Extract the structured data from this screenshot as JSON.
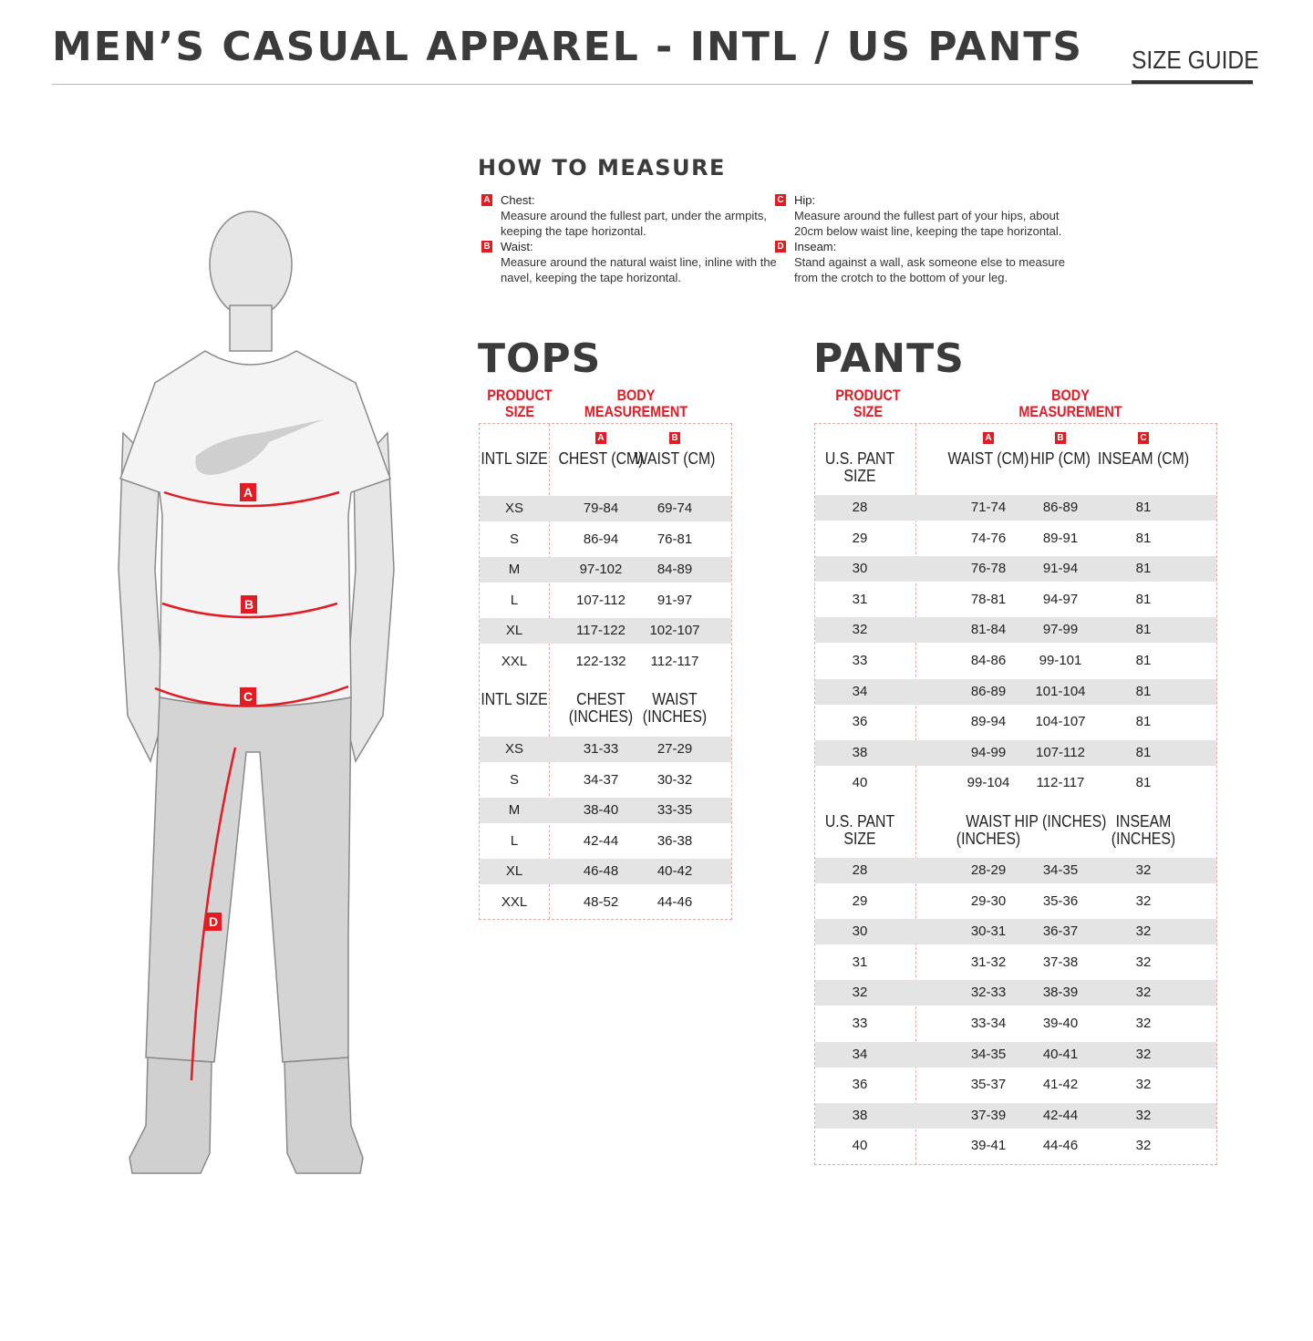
{
  "header": {
    "title": "MEN’S CASUAL APPAREL - INTL / US PANTS",
    "size_guide": "SIZE GUIDE"
  },
  "measure": {
    "title": "HOW TO MEASURE",
    "items": [
      {
        "letter": "A",
        "label": "Chest:",
        "text": "Measure around the fullest part, under the armpits, keeping the tape horizontal."
      },
      {
        "letter": "B",
        "label": "Waist:",
        "text": "Measure around the natural waist line, inline with the navel, keeping the tape horizontal."
      },
      {
        "letter": "C",
        "label": "Hip:",
        "text": "Measure around the fullest part of your hips, about 20cm below waist line, keeping the tape horizontal."
      },
      {
        "letter": "D",
        "label": "Inseam:",
        "text": "Stand against a wall, ask someone else to measure from the crotch to the bottom of your leg."
      }
    ]
  },
  "figure": {
    "markers": [
      "A",
      "B",
      "C",
      "D"
    ],
    "accent": "#e31b23"
  },
  "tops": {
    "title": "TOPS",
    "product_size": "PRODUCT SIZE",
    "body_measurement": "BODY MEASUREMENT",
    "letters": [
      "A",
      "B"
    ],
    "cm_headers": [
      "INTL SIZE",
      "CHEST (CM)",
      "WAIST (CM)"
    ],
    "cm_rows": [
      [
        "XS",
        "79-84",
        "69-74"
      ],
      [
        "S",
        "86-94",
        "76-81"
      ],
      [
        "M",
        "97-102",
        "84-89"
      ],
      [
        "L",
        "107-112",
        "91-97"
      ],
      [
        "XL",
        "117-122",
        "102-107"
      ],
      [
        "XXL",
        "122-132",
        "112-117"
      ]
    ],
    "in_headers": [
      "INTL SIZE",
      "CHEST (INCHES)",
      "WAIST (INCHES)"
    ],
    "in_rows": [
      [
        "XS",
        "31-33",
        "27-29"
      ],
      [
        "S",
        "34-37",
        "30-32"
      ],
      [
        "M",
        "38-40",
        "33-35"
      ],
      [
        "L",
        "42-44",
        "36-38"
      ],
      [
        "XL",
        "46-48",
        "40-42"
      ],
      [
        "XXL",
        "48-52",
        "44-46"
      ]
    ]
  },
  "pants": {
    "title": "PANTS",
    "product_size": "PRODUCT SIZE",
    "body_measurement": "BODY MEASUREMENT",
    "letters": [
      "A",
      "B",
      "C"
    ],
    "cm_headers": [
      "U.S. PANT SIZE",
      "WAIST (CM)",
      "HIP (CM)",
      "INSEAM (CM)"
    ],
    "cm_rows": [
      [
        "28",
        "71-74",
        "86-89",
        "81"
      ],
      [
        "29",
        "74-76",
        "89-91",
        "81"
      ],
      [
        "30",
        "76-78",
        "91-94",
        "81"
      ],
      [
        "31",
        "78-81",
        "94-97",
        "81"
      ],
      [
        "32",
        "81-84",
        "97-99",
        "81"
      ],
      [
        "33",
        "84-86",
        "99-101",
        "81"
      ],
      [
        "34",
        "86-89",
        "101-104",
        "81"
      ],
      [
        "36",
        "89-94",
        "104-107",
        "81"
      ],
      [
        "38",
        "94-99",
        "107-112",
        "81"
      ],
      [
        "40",
        "99-104",
        "112-117",
        "81"
      ]
    ],
    "in_headers": [
      "U.S. PANT SIZE",
      "WAIST (INCHES)",
      "HIP (INCHES)",
      "INSEAM (INCHES)"
    ],
    "in_rows": [
      [
        "28",
        "28-29",
        "34-35",
        "32"
      ],
      [
        "29",
        "29-30",
        "35-36",
        "32"
      ],
      [
        "30",
        "30-31",
        "36-37",
        "32"
      ],
      [
        "31",
        "31-32",
        "37-38",
        "32"
      ],
      [
        "32",
        "32-33",
        "38-39",
        "32"
      ],
      [
        "33",
        "33-34",
        "39-40",
        "32"
      ],
      [
        "34",
        "34-35",
        "40-41",
        "32"
      ],
      [
        "36",
        "35-37",
        "41-42",
        "32"
      ],
      [
        "38",
        "37-39",
        "42-44",
        "32"
      ],
      [
        "40",
        "39-41",
        "44-46",
        "32"
      ]
    ]
  }
}
